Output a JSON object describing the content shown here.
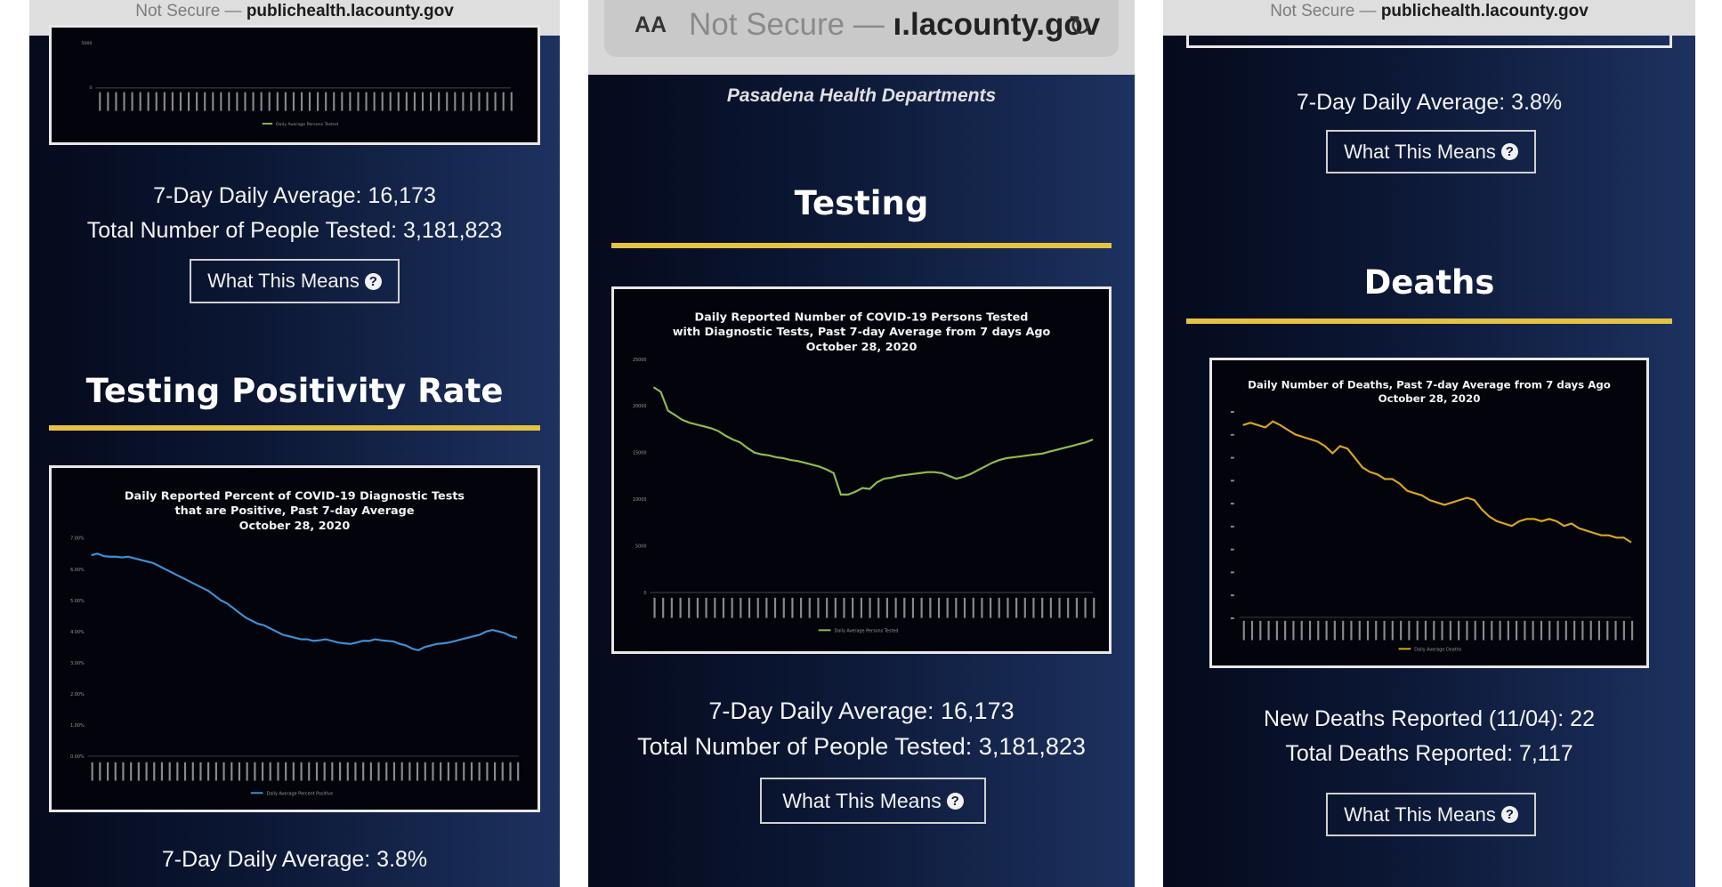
{
  "panel1": {
    "url_prefix": "Not Secure — ",
    "url_domain": "publichealth.lacounty.gov",
    "testing_stats": {
      "average": "7-Day Daily Average: 16,173",
      "total": "Total Number of People Tested: 3,181,823",
      "button_label": "What This Means"
    },
    "top_chart": {
      "y_tick": "5000",
      "zero_tick": "0",
      "legend": "Daily Average Persons Tested"
    },
    "section_title": "Testing Positivity Rate",
    "positivity_chart": {
      "title_lines": [
        "Daily Reported Percent of COVID-19 Diagnostic Tests",
        "that are Positive, Past 7-day Average",
        "October 28, 2020"
      ],
      "y_ticks": [
        "7.00%",
        "6.00%",
        "5.00%",
        "4.00%",
        "3.00%",
        "2.00%",
        "1.00%",
        "0.00%"
      ],
      "legend": "Daily Average Percent Positive"
    },
    "bottom_stat": "7-Day Daily Average: 3.8%"
  },
  "panel2": {
    "aa_label": "AA",
    "url_prefix": "Not Secure — ",
    "url_domain": "ı.lacounty.gov",
    "header_text": "Pasadena Health Departments",
    "section_title": "Testing",
    "testing_chart": {
      "title_lines": [
        "Daily Reported Number of COVID-19 Persons Tested",
        "with Diagnostic Tests, Past 7-day Average from 7 days Ago",
        "October 28, 2020"
      ],
      "y_ticks": [
        "25000",
        "20000",
        "15000",
        "10000",
        "5000",
        "0"
      ],
      "legend": "Daily Average Persons Tested"
    },
    "stats": {
      "average": "7-Day Daily Average: 16,173",
      "total": "Total Number of People Tested: 3,181,823",
      "button_label": "What This Means"
    }
  },
  "panel3": {
    "url_prefix": "Not Secure — ",
    "url_domain": "publichealth.lacounty.gov",
    "positivity_stat": "7-Day Daily Average: 3.8%",
    "button_label_1": "What This Means",
    "section_title": "Deaths",
    "deaths_chart": {
      "title_lines": [
        "Daily Number of Deaths, Past 7-day Average from 7 days Ago",
        "October 28, 2020"
      ],
      "legend": "Daily Average Deaths"
    },
    "stats": {
      "new_deaths": "New Deaths Reported (11/04): 22",
      "total_deaths": "Total Deaths Reported: 7,117",
      "button_label": "What This Means"
    }
  },
  "colors": {
    "accent_rule": "#e6c243",
    "positivity_line": "#3f8fd6",
    "testing_line": "#8dbb4e",
    "deaths_line": "#d9a521"
  },
  "chart_data": [
    {
      "type": "line",
      "title": "Daily Reported Percent of COVID-19 Diagnostic Tests that are Positive, Past 7-day Average October 28, 2020",
      "ylim": [
        0,
        7
      ],
      "series": [
        {
          "name": "Daily Average Percent Positive",
          "values": [
            6.45,
            6.5,
            6.42,
            6.4,
            6.4,
            6.38,
            6.4,
            6.35,
            6.3,
            6.25,
            6.2,
            6.1,
            6.0,
            5.9,
            5.8,
            5.7,
            5.6,
            5.5,
            5.4,
            5.3,
            5.15,
            5.0,
            4.9,
            4.75,
            4.6,
            4.45,
            4.35,
            4.25,
            4.2,
            4.1,
            4.0,
            3.9,
            3.85,
            3.8,
            3.75,
            3.75,
            3.7,
            3.72,
            3.75,
            3.7,
            3.65,
            3.62,
            3.6,
            3.65,
            3.7,
            3.7,
            3.75,
            3.72,
            3.7,
            3.68,
            3.6,
            3.55,
            3.45,
            3.4,
            3.5,
            3.55,
            3.6,
            3.62,
            3.65,
            3.7,
            3.75,
            3.8,
            3.85,
            3.9,
            4.0,
            4.05,
            4.0,
            3.95,
            3.85,
            3.8
          ]
        }
      ]
    },
    {
      "type": "line",
      "title": "Daily Reported Number of COVID-19 Persons Tested with Diagnostic Tests, Past 7-day Average from 7 days Ago October 28, 2020",
      "ylim": [
        0,
        25000
      ],
      "series": [
        {
          "name": "Daily Average Persons Tested",
          "values": [
            22000,
            21500,
            19500,
            19000,
            18500,
            18200,
            18000,
            17800,
            17600,
            17300,
            16800,
            16400,
            16100,
            15500,
            15000,
            14800,
            14700,
            14500,
            14400,
            14200,
            14100,
            13900,
            13700,
            13500,
            13200,
            12800,
            10500,
            10500,
            10800,
            11200,
            11100,
            11800,
            12200,
            12300,
            12500,
            12600,
            12700,
            12800,
            12900,
            12900,
            12800,
            12500,
            12200,
            12400,
            12700,
            13100,
            13500,
            13900,
            14200,
            14400,
            14500,
            14600,
            14700,
            14800,
            14900,
            15100,
            15300,
            15500,
            15700,
            15900,
            16100,
            16400
          ]
        }
      ]
    },
    {
      "type": "line",
      "title": "Daily Number of Deaths, Past 7-day Average from 7 days Ago October 28, 2020",
      "series": [
        {
          "name": "Daily Average Deaths",
          "values": [
            41,
            41.5,
            41,
            40.5,
            41.8,
            41,
            40,
            39,
            38.5,
            38,
            37.5,
            36.5,
            35,
            36.5,
            36,
            34,
            32,
            31,
            30.5,
            29.5,
            29.5,
            28.5,
            27,
            26.5,
            26,
            25,
            24.5,
            24,
            24.5,
            25,
            25.5,
            25,
            23,
            21.5,
            20.5,
            20,
            19.5,
            20.5,
            21,
            21,
            20.5,
            21,
            20.5,
            19.5,
            20,
            19,
            18.5,
            18,
            17.5,
            17.5,
            17,
            17,
            16
          ]
        }
      ]
    }
  ]
}
